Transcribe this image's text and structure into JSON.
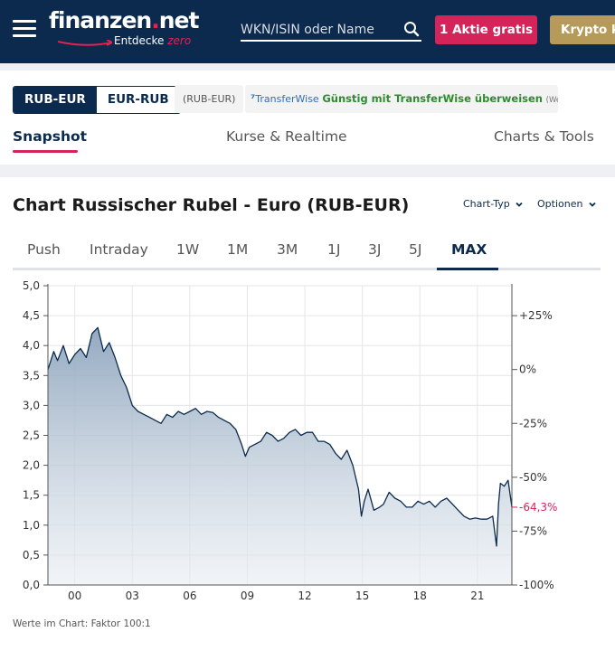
{
  "header": {
    "logo": "finanzen.net",
    "logo_sub": "Entdecke",
    "logo_sub_zero": "zero",
    "search_placeholder": "WKN/ISIN oder Name",
    "cta_gratis": "1 Aktie gratis",
    "cta_krypto": "Krypto ka",
    "icons": [
      "menu-icon",
      "search-icon"
    ]
  },
  "instrument": {
    "pair_buttons": [
      "RUB-EUR",
      "EUR-RUB"
    ],
    "active_pair": "RUB-EUR",
    "pair_chip": "(RUB-EUR)",
    "transferwise_logo": "TransferWise",
    "transferwise_text": "Günstig mit TransferWise überweisen",
    "transferwise_ad": "(Werbung)"
  },
  "nav": {
    "tabs": [
      "Snapshot",
      "Kurse & Realtime",
      "Charts & Tools"
    ],
    "active": "Snapshot"
  },
  "chart_section": {
    "title": "Chart Russischer Rubel - Euro (RUB-EUR)",
    "chart_type_label": "Chart-Typ",
    "options_label": "Optionen",
    "range_tabs": [
      "Push",
      "Intraday",
      "1W",
      "1M",
      "3M",
      "1J",
      "3J",
      "5J",
      "MAX"
    ],
    "active_range": "MAX",
    "footnote": "Werte im Chart: Faktor 100:1",
    "colors": {
      "accent": "#0b2a4d",
      "negative": "#d5245a",
      "fill": "#9fb3c8",
      "pink": "#d5245a"
    }
  },
  "chart_data": {
    "type": "area",
    "x": [
      1998.6,
      1998.9,
      1999.1,
      1999.4,
      1999.7,
      2000.0,
      2000.3,
      2000.6,
      2000.9,
      2001.2,
      2001.5,
      2001.8,
      2002.1,
      2002.4,
      2002.7,
      2003.0,
      2003.3,
      2003.6,
      2003.9,
      2004.2,
      2004.5,
      2004.8,
      2005.1,
      2005.4,
      2005.7,
      2006.0,
      2006.3,
      2006.6,
      2006.9,
      2007.2,
      2007.5,
      2007.8,
      2008.1,
      2008.4,
      2008.7,
      2008.9,
      2009.1,
      2009.4,
      2009.7,
      2010.0,
      2010.3,
      2010.6,
      2010.9,
      2011.2,
      2011.5,
      2011.8,
      2012.1,
      2012.4,
      2012.7,
      2013.0,
      2013.3,
      2013.6,
      2013.9,
      2014.2,
      2014.5,
      2014.8,
      2014.95,
      2015.1,
      2015.3,
      2015.6,
      2015.9,
      2016.1,
      2016.4,
      2016.7,
      2017.0,
      2017.3,
      2017.6,
      2017.9,
      2018.2,
      2018.5,
      2018.8,
      2019.1,
      2019.4,
      2019.7,
      2020.0,
      2020.3,
      2020.6,
      2020.9,
      2021.2,
      2021.5,
      2021.8,
      2022.0,
      2022.1,
      2022.2,
      2022.4,
      2022.6,
      2022.8
    ],
    "y": [
      3.6,
      3.9,
      3.75,
      4.0,
      3.7,
      3.85,
      3.95,
      3.8,
      4.2,
      4.3,
      3.9,
      4.05,
      3.8,
      3.5,
      3.3,
      3.0,
      2.9,
      2.85,
      2.8,
      2.75,
      2.7,
      2.85,
      2.8,
      2.9,
      2.85,
      2.9,
      2.95,
      2.85,
      2.9,
      2.88,
      2.8,
      2.75,
      2.7,
      2.6,
      2.35,
      2.15,
      2.3,
      2.35,
      2.4,
      2.55,
      2.5,
      2.4,
      2.45,
      2.55,
      2.6,
      2.5,
      2.55,
      2.55,
      2.4,
      2.4,
      2.35,
      2.2,
      2.1,
      2.25,
      2.0,
      1.6,
      1.15,
      1.4,
      1.6,
      1.25,
      1.3,
      1.35,
      1.55,
      1.45,
      1.4,
      1.3,
      1.3,
      1.4,
      1.35,
      1.4,
      1.3,
      1.4,
      1.45,
      1.35,
      1.25,
      1.15,
      1.1,
      1.12,
      1.1,
      1.1,
      1.15,
      0.65,
      1.35,
      1.7,
      1.65,
      1.75,
      1.3
    ],
    "xlim": [
      1998.6,
      2022.8
    ],
    "ylim": [
      0,
      5
    ],
    "yticks": [
      0.0,
      0.5,
      1.0,
      1.5,
      2.0,
      2.5,
      3.0,
      3.5,
      4.0,
      4.5,
      5.0
    ],
    "ytick_labels": [
      "0,0",
      "0,5",
      "1,0",
      "1,5",
      "2,0",
      "2,5",
      "3,0",
      "3,5",
      "4,0",
      "4,5",
      "5,0"
    ],
    "xticks": [
      2000,
      2003,
      2006,
      2009,
      2012,
      2015,
      2018,
      2021
    ],
    "xtick_labels": [
      "00",
      "03",
      "06",
      "09",
      "12",
      "15",
      "18",
      "21"
    ],
    "right_axis_ticks": [
      25,
      0,
      -25,
      -50,
      -75,
      -100
    ],
    "right_axis_labels": [
      "+25%",
      "0%",
      "-25%",
      "-50%",
      "-75%",
      "-100%"
    ],
    "right_axis_base": 3.6,
    "current_change": "-64,3%",
    "grid": true
  }
}
